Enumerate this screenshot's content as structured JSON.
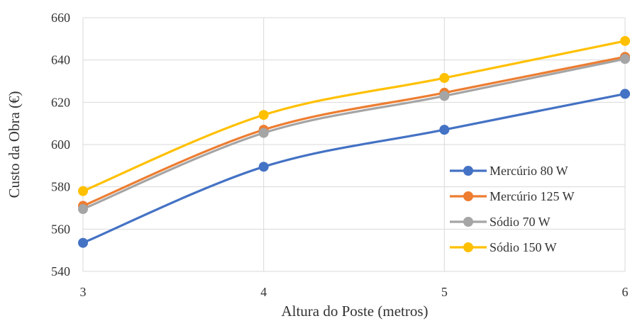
{
  "chart_data": {
    "type": "line",
    "title": "",
    "xlabel": "Altura do Poste (metros)",
    "ylabel": "Custo da Obra (€)",
    "x": [
      3,
      4,
      5,
      6
    ],
    "x_tick_labels": [
      "3",
      "4",
      "5",
      "6"
    ],
    "ylim": [
      540,
      660
    ],
    "y_ticks": [
      540,
      560,
      580,
      600,
      620,
      640,
      660
    ],
    "y_tick_labels": [
      "540",
      "560",
      "580",
      "600",
      "620",
      "640",
      "660"
    ],
    "grid": true,
    "legend_position": "right",
    "smooth": true,
    "series": [
      {
        "name": "Mercúrio 80 W",
        "color": "#4472c4",
        "values": [
          553.5,
          589.5,
          607,
          624
        ]
      },
      {
        "name": "Mercúrio 125 W",
        "color": "#ed7d31",
        "values": [
          571,
          607,
          624.5,
          641.5
        ]
      },
      {
        "name": "Sódio 70 W",
        "color": "#a5a5a5",
        "values": [
          569.5,
          605.5,
          623,
          640.5
        ]
      },
      {
        "name": "Sódio 150 W",
        "color": "#ffc000",
        "values": [
          578,
          614,
          631.5,
          649
        ]
      }
    ]
  }
}
